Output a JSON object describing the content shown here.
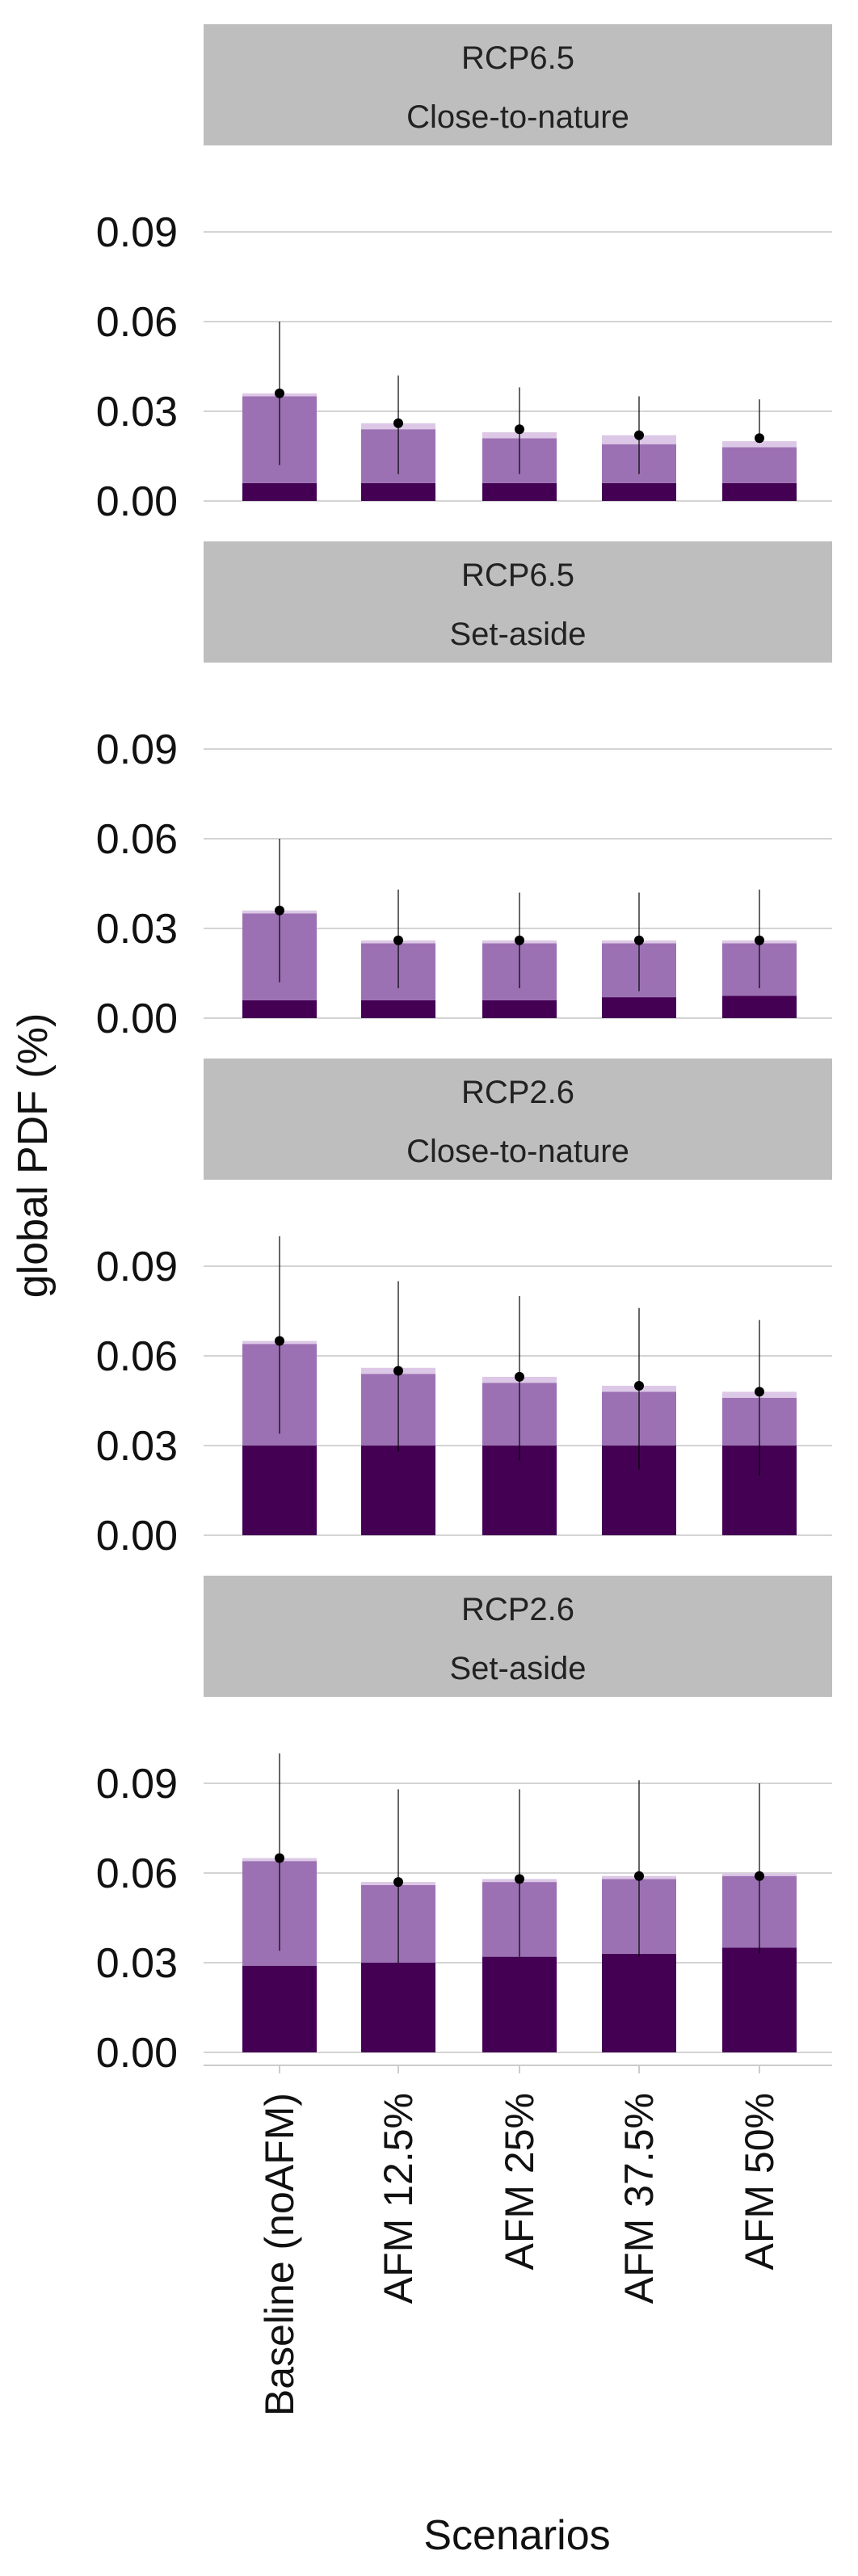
{
  "chart_data": {
    "type": "bar",
    "stacked": true,
    "ylabel": "global PDF (%)",
    "xlabel": "Scenarios",
    "categories": [
      "Baseline (noAFM)",
      "AFM 12.5%",
      "AFM 25%",
      "AFM 37.5%",
      "AFM 50%"
    ],
    "y_ticks": [
      "0.00",
      "0.03",
      "0.06",
      "0.09"
    ],
    "ylim": [
      0,
      0.1
    ],
    "grid": true,
    "legend": "none",
    "colors": {
      "bottom": "#440154",
      "middle": "#9c71b3",
      "top": "#dcc8e6",
      "point": "#000000",
      "strip": "#bebebe"
    },
    "panels": [
      {
        "strip_line1": "RCP6.5",
        "strip_line2": "Close-to-nature",
        "bottom": [
          0.006,
          0.006,
          0.006,
          0.006,
          0.006
        ],
        "middle": [
          0.029,
          0.018,
          0.015,
          0.013,
          0.012
        ],
        "top": [
          0.001,
          0.002,
          0.002,
          0.003,
          0.002
        ],
        "point": [
          0.036,
          0.026,
          0.024,
          0.022,
          0.021
        ],
        "err_low": [
          0.012,
          0.009,
          0.009,
          0.009,
          0.0195
        ],
        "err_high": [
          0.06,
          0.042,
          0.038,
          0.035,
          0.034
        ]
      },
      {
        "strip_line1": "RCP6.5",
        "strip_line2": "Set-aside",
        "bottom": [
          0.006,
          0.006,
          0.006,
          0.007,
          0.0075
        ],
        "middle": [
          0.029,
          0.019,
          0.019,
          0.018,
          0.0175
        ],
        "top": [
          0.001,
          0.001,
          0.001,
          0.001,
          0.001
        ],
        "point": [
          0.036,
          0.026,
          0.026,
          0.026,
          0.026
        ],
        "err_low": [
          0.012,
          0.01,
          0.01,
          0.009,
          0.01
        ],
        "err_high": [
          0.06,
          0.043,
          0.042,
          0.042,
          0.043
        ]
      },
      {
        "strip_line1": "RCP2.6",
        "strip_line2": "Close-to-nature",
        "bottom": [
          0.03,
          0.03,
          0.03,
          0.03,
          0.03
        ],
        "middle": [
          0.034,
          0.024,
          0.021,
          0.018,
          0.016
        ],
        "top": [
          0.001,
          0.002,
          0.002,
          0.002,
          0.002
        ],
        "point": [
          0.065,
          0.055,
          0.053,
          0.05,
          0.048
        ],
        "err_low": [
          0.034,
          0.028,
          0.025,
          0.022,
          0.02
        ],
        "err_high": [
          0.1,
          0.085,
          0.08,
          0.076,
          0.072
        ]
      },
      {
        "strip_line1": "RCP2.6",
        "strip_line2": "Set-aside",
        "bottom": [
          0.029,
          0.03,
          0.032,
          0.033,
          0.035
        ],
        "middle": [
          0.035,
          0.026,
          0.025,
          0.025,
          0.024
        ],
        "top": [
          0.001,
          0.001,
          0.001,
          0.001,
          0.001
        ],
        "point": [
          0.065,
          0.057,
          0.058,
          0.059,
          0.059
        ],
        "err_low": [
          0.034,
          0.03,
          0.032,
          0.032,
          0.033
        ],
        "err_high": [
          0.1,
          0.088,
          0.088,
          0.091,
          0.09
        ]
      }
    ]
  }
}
